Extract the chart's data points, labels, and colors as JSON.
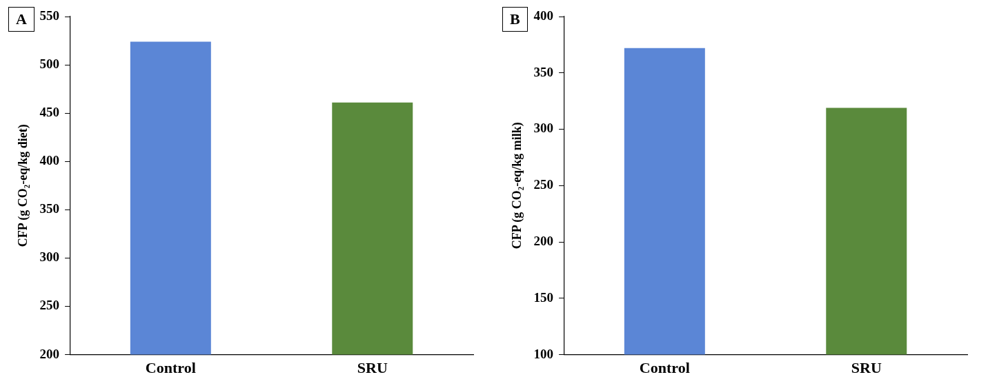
{
  "chart_data": [
    {
      "type": "bar",
      "title": "A",
      "ylabel": "CFP (g CO₂-eq/kg diet)",
      "categories": [
        "Control",
        "SRU"
      ],
      "values": [
        524,
        461
      ],
      "colors": [
        "#5b86d6",
        "#5a8a3c"
      ],
      "ylim": [
        200,
        550
      ],
      "yticks": [
        200,
        250,
        300,
        350,
        400,
        450,
        500,
        550
      ],
      "grid": false,
      "legend": false
    },
    {
      "type": "bar",
      "title": "B",
      "ylabel": "CFP (g CO₂-eq/kg milk)",
      "categories": [
        "Control",
        "SRU"
      ],
      "values": [
        372,
        319
      ],
      "colors": [
        "#5b86d6",
        "#5a8a3c"
      ],
      "ylim": [
        100,
        400
      ],
      "yticks": [
        100,
        150,
        200,
        250,
        300,
        350,
        400
      ],
      "grid": false,
      "legend": false
    }
  ]
}
